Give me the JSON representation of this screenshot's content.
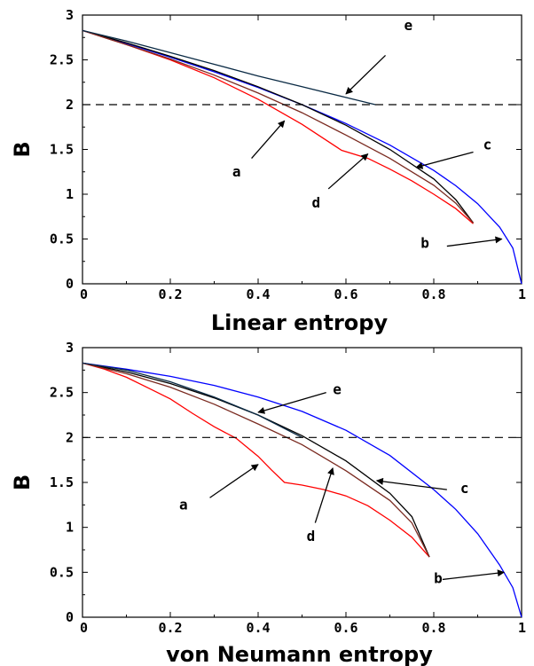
{
  "chart_data": [
    {
      "type": "line",
      "xlabel": "Linear entropy",
      "ylabel": "B",
      "xlim": [
        0,
        1
      ],
      "ylim": [
        0,
        3
      ],
      "x_ticks": [
        "0",
        "0.2",
        "0.4",
        "0.6",
        "0.8",
        "1"
      ],
      "y_ticks": [
        "0",
        "0.5",
        "1",
        "1.5",
        "2",
        "2.5",
        "3"
      ],
      "colors": {
        "a": "#ff0000",
        "b": "#0000ff",
        "c": "#000000",
        "d": "#7a2a20",
        "e": "#0a2a44",
        "threshold": "#000000"
      },
      "series": [
        {
          "name": "a",
          "x": [
            0,
            0.1,
            0.2,
            0.3,
            0.4,
            0.5,
            0.59,
            0.65,
            0.7,
            0.75,
            0.8,
            0.85,
            0.89
          ],
          "y": [
            2.828,
            2.67,
            2.5,
            2.3,
            2.06,
            1.78,
            1.49,
            1.4,
            1.28,
            1.15,
            1.0,
            0.84,
            0.67
          ]
        },
        {
          "name": "b",
          "x": [
            0,
            0.1,
            0.2,
            0.3,
            0.4,
            0.5,
            0.6,
            0.7,
            0.8,
            0.85,
            0.9,
            0.95,
            0.98,
            1.0
          ],
          "y": [
            2.828,
            2.683,
            2.53,
            2.366,
            2.191,
            2.0,
            1.789,
            1.549,
            1.265,
            1.095,
            0.894,
            0.632,
            0.4,
            0
          ]
        },
        {
          "name": "c",
          "x": [
            0,
            0.1,
            0.2,
            0.3,
            0.4,
            0.5,
            0.6,
            0.7,
            0.8,
            0.85,
            0.89
          ],
          "y": [
            2.828,
            2.69,
            2.54,
            2.38,
            2.2,
            2.0,
            1.77,
            1.5,
            1.17,
            0.94,
            0.68
          ]
        },
        {
          "name": "d",
          "x": [
            0,
            0.1,
            0.2,
            0.3,
            0.4,
            0.5,
            0.6,
            0.7,
            0.8,
            0.85,
            0.89
          ],
          "y": [
            2.828,
            2.67,
            2.51,
            2.33,
            2.13,
            1.91,
            1.66,
            1.4,
            1.1,
            0.9,
            0.68
          ]
        },
        {
          "name": "e",
          "x": [
            0,
            0.1,
            0.2,
            0.3,
            0.4,
            0.5,
            0.6,
            0.667
          ],
          "y": [
            2.828,
            2.71,
            2.58,
            2.45,
            2.32,
            2.2,
            2.08,
            2.0
          ]
        },
        {
          "name": "threshold",
          "x": [
            0,
            1
          ],
          "y": [
            2,
            2
          ]
        }
      ],
      "annotations": [
        {
          "label": "e",
          "label_at": [
            0.742,
            2.83
          ],
          "arrow_from": [
            0.69,
            2.55
          ],
          "arrow_to": [
            0.6,
            2.12
          ]
        },
        {
          "label": "a",
          "label_at": [
            0.351,
            1.2
          ],
          "arrow_from": [
            0.385,
            1.4
          ],
          "arrow_to": [
            0.46,
            1.82
          ]
        },
        {
          "label": "c",
          "label_at": [
            0.922,
            1.5
          ],
          "arrow_from": [
            0.89,
            1.47
          ],
          "arrow_to": [
            0.76,
            1.3
          ]
        },
        {
          "label": "d",
          "label_at": [
            0.532,
            0.85
          ],
          "arrow_from": [
            0.56,
            1.06
          ],
          "arrow_to": [
            0.65,
            1.45
          ]
        },
        {
          "label": "b",
          "label_at": [
            0.78,
            0.4
          ],
          "arrow_from": [
            0.83,
            0.42
          ],
          "arrow_to": [
            0.955,
            0.5
          ]
        }
      ]
    },
    {
      "type": "line",
      "xlabel": "von Neumann entropy",
      "ylabel": "B",
      "xlim": [
        0,
        1
      ],
      "ylim": [
        0,
        3
      ],
      "x_ticks": [
        "0",
        "0.2",
        "0.4",
        "0.6",
        "0.8",
        "1"
      ],
      "y_ticks": [
        "0",
        "0.5",
        "1",
        "1.5",
        "2",
        "2.5",
        "3"
      ],
      "colors": {
        "a": "#ff0000",
        "b": "#0000ff",
        "c": "#000000",
        "d": "#7a2a20",
        "e": "#0a2a44",
        "threshold": "#000000"
      },
      "series": [
        {
          "name": "a",
          "x": [
            0,
            0.05,
            0.1,
            0.15,
            0.2,
            0.25,
            0.3,
            0.35,
            0.4,
            0.43,
            0.46,
            0.5,
            0.55,
            0.6,
            0.65,
            0.7,
            0.75,
            0.79
          ],
          "y": [
            2.828,
            2.76,
            2.67,
            2.55,
            2.43,
            2.27,
            2.12,
            1.99,
            1.79,
            1.64,
            1.5,
            1.47,
            1.42,
            1.35,
            1.24,
            1.08,
            0.89,
            0.67
          ]
        },
        {
          "name": "b",
          "x": [
            0,
            0.1,
            0.2,
            0.3,
            0.4,
            0.5,
            0.6,
            0.7,
            0.8,
            0.85,
            0.9,
            0.95,
            0.98,
            1.0
          ],
          "y": [
            2.828,
            2.76,
            2.68,
            2.58,
            2.45,
            2.29,
            2.08,
            1.8,
            1.42,
            1.2,
            0.93,
            0.58,
            0.33,
            0
          ]
        },
        {
          "name": "c",
          "x": [
            0,
            0.1,
            0.2,
            0.3,
            0.4,
            0.5,
            0.6,
            0.7,
            0.75,
            0.79
          ],
          "y": [
            2.828,
            2.73,
            2.6,
            2.44,
            2.25,
            2.02,
            1.74,
            1.38,
            1.12,
            0.67
          ]
        },
        {
          "name": "d",
          "x": [
            0,
            0.1,
            0.2,
            0.3,
            0.4,
            0.5,
            0.6,
            0.7,
            0.75,
            0.79
          ],
          "y": [
            2.828,
            2.71,
            2.56,
            2.37,
            2.15,
            1.92,
            1.63,
            1.3,
            1.05,
            0.67
          ]
        },
        {
          "name": "e",
          "x": [
            0,
            0.1,
            0.2,
            0.3,
            0.4,
            0.5
          ],
          "y": [
            2.828,
            2.75,
            2.62,
            2.45,
            2.25,
            2.0
          ]
        },
        {
          "name": "threshold",
          "x": [
            0,
            1
          ],
          "y": [
            2,
            2
          ]
        }
      ],
      "annotations": [
        {
          "label": "e",
          "label_at": [
            0.58,
            2.48
          ],
          "arrow_from": [
            0.555,
            2.5
          ],
          "arrow_to": [
            0.4,
            2.28
          ]
        },
        {
          "label": "a",
          "label_at": [
            0.23,
            1.2
          ],
          "arrow_from": [
            0.29,
            1.33
          ],
          "arrow_to": [
            0.4,
            1.7
          ]
        },
        {
          "label": "c",
          "label_at": [
            0.87,
            1.38
          ],
          "arrow_from": [
            0.83,
            1.42
          ],
          "arrow_to": [
            0.67,
            1.52
          ]
        },
        {
          "label": "d",
          "label_at": [
            0.52,
            0.85
          ],
          "arrow_from": [
            0.53,
            1.05
          ],
          "arrow_to": [
            0.57,
            1.66
          ]
        },
        {
          "label": "b",
          "label_at": [
            0.81,
            0.38
          ],
          "arrow_from": [
            0.82,
            0.42
          ],
          "arrow_to": [
            0.96,
            0.5
          ]
        }
      ]
    }
  ]
}
